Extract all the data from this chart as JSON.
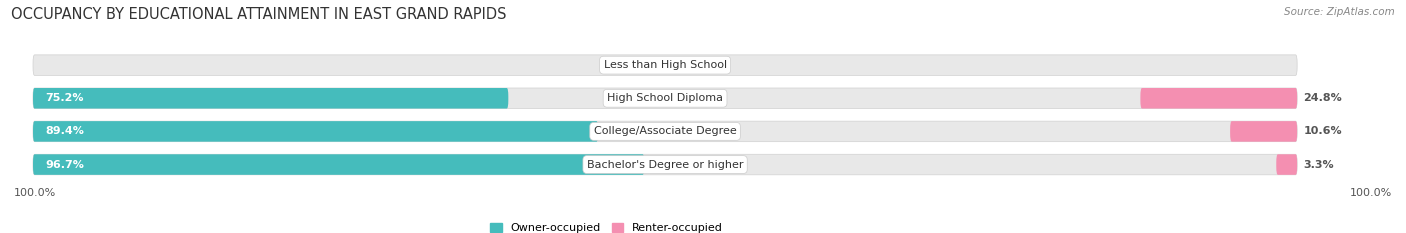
{
  "title": "OCCUPANCY BY EDUCATIONAL ATTAINMENT IN EAST GRAND RAPIDS",
  "source": "Source: ZipAtlas.com",
  "categories": [
    "Less than High School",
    "High School Diploma",
    "College/Associate Degree",
    "Bachelor's Degree or higher"
  ],
  "owner_values": [
    0.0,
    75.2,
    89.4,
    96.7
  ],
  "renter_values": [
    0.0,
    24.8,
    10.6,
    3.3
  ],
  "owner_color": "#45BCBC",
  "renter_color": "#F48FB1",
  "bar_bg_color": "#E8E8E8",
  "bar_bg_edge_color": "#D0D0D0",
  "owner_label": "Owner-occupied",
  "renter_label": "Renter-occupied",
  "title_fontsize": 10.5,
  "source_fontsize": 7.5,
  "label_fontsize": 8,
  "pct_fontsize": 8,
  "tick_fontsize": 8,
  "figsize": [
    14.06,
    2.33
  ],
  "dpi": 100,
  "bar_height": 0.62,
  "background_color": "#FFFFFF",
  "axis_label_left": "100.0%",
  "axis_label_right": "100.0%",
  "total_width": 100
}
